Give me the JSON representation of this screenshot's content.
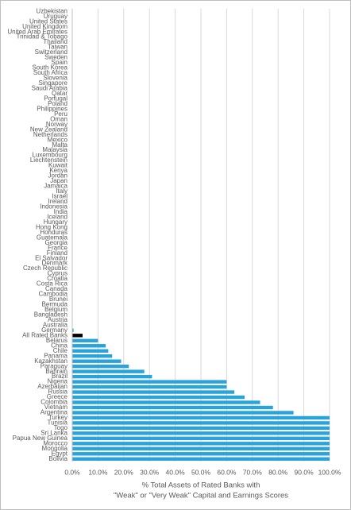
{
  "chart_data": {
    "type": "barh",
    "x_label": [
      "% Total Assets of Rated Banks with",
      "\"Weak\" or \"Very Weak\" Capital and Earnings Scores"
    ],
    "categories": [
      "Uzbekistan",
      "Uruguay",
      "United States",
      "United Kingdom",
      "United Arab Emirates",
      "Trinidad & Tobago",
      "Thailand",
      "Taiwan",
      "Switzerland",
      "Sweden",
      "Spain",
      "South Korea",
      "South Africa",
      "Slovenia",
      "Singapore",
      "Saudi Arabia",
      "Qatar",
      "Portugal",
      "Poland",
      "Philippines",
      "Peru",
      "Oman",
      "Norway",
      "New Zealand",
      "Netherlands",
      "Mexico",
      "Malta",
      "Malaysia",
      "Luxembourg",
      "Liechtenstein",
      "Kuwait",
      "Kenya",
      "Jordan",
      "Japan",
      "Jamaica",
      "Italy",
      "Israel",
      "Ireland",
      "Indonesia",
      "India",
      "Iceland",
      "Hungary",
      "Hong Kong",
      "Honduras",
      "Guatemala",
      "Georgia",
      "France",
      "Finland",
      "El Salvador",
      "Denmark",
      "Czech Republic",
      "Cyprus",
      "Croatia",
      "Costa Rica",
      "Canada",
      "Cambodia",
      "Brunei",
      "Bermuda",
      "Belgium",
      "Bangladesh",
      "Austria",
      "Australia",
      "Germany",
      "All Rated Banks",
      "Belarus",
      "China",
      "Chile",
      "Panama",
      "Kazakhstan",
      "Paraguay",
      "Bahrain",
      "Brazil",
      "Nigeria",
      "Azerbaijan",
      "Russia",
      "Greece",
      "Colombia",
      "Vietnam",
      "Argentina",
      "Turkey",
      "Tunisia",
      "Togo",
      "Sri Lanka",
      "Papua New Guinea",
      "Morocco",
      "Mongolia",
      "Egypt",
      "Bolivia"
    ],
    "values": [
      0,
      0,
      0,
      0,
      0,
      0,
      0,
      0,
      0,
      0,
      0,
      0,
      0,
      0,
      0,
      0,
      0,
      0,
      0,
      0,
      0,
      0,
      0,
      0,
      0,
      0,
      0,
      0,
      0,
      0,
      0,
      0,
      0,
      0,
      0,
      0,
      0,
      0,
      0,
      0,
      0,
      0,
      0,
      0,
      0,
      0,
      0,
      0,
      0,
      0,
      0,
      0,
      0,
      0,
      0,
      0,
      0,
      0,
      0,
      0,
      0,
      0,
      0.5,
      4,
      10,
      13,
      14,
      15.5,
      19,
      22,
      28,
      31,
      60,
      60,
      63,
      67,
      73,
      78,
      86,
      100,
      100,
      100,
      100,
      100,
      100,
      100,
      100,
      100
    ],
    "color": "#29a3dc",
    "highlight": {
      "category": "All Rated Banks",
      "color": "#000000"
    },
    "xlim": [
      0,
      100
    ],
    "xticks": [
      {
        "value": 0,
        "label": "0.0%"
      },
      {
        "value": 10,
        "label": "10.0%"
      },
      {
        "value": 20,
        "label": "20.0%"
      },
      {
        "value": 30,
        "label": "30.0%"
      },
      {
        "value": 40,
        "label": "40.0%"
      },
      {
        "value": 50,
        "label": "50.0%"
      },
      {
        "value": 60,
        "label": "60.0%"
      },
      {
        "value": 70,
        "label": "70.0%"
      },
      {
        "value": 80,
        "label": "80.0%"
      },
      {
        "value": 90,
        "label": "90.0%"
      },
      {
        "value": 100,
        "label": "100.0%"
      }
    ],
    "grid": true
  }
}
